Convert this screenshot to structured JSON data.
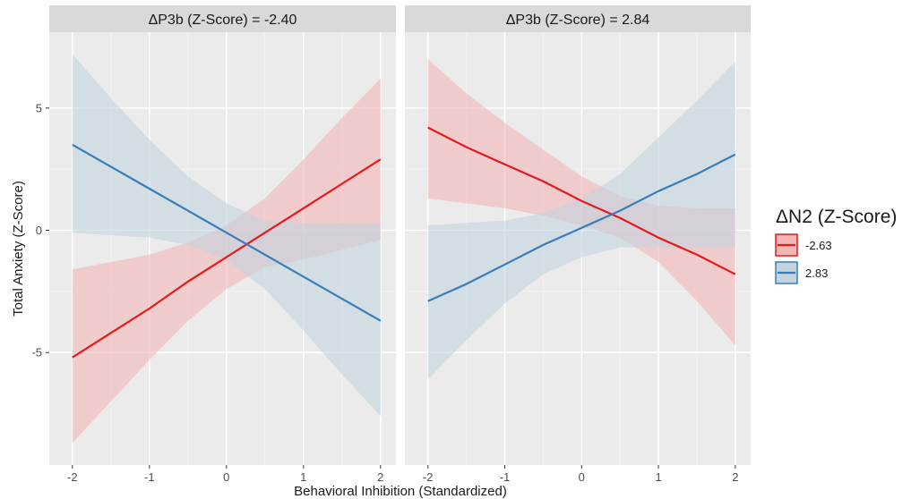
{
  "chart_data": {
    "type": "line",
    "xlabel": "Behavioral Inhibition (Standardized)",
    "ylabel": "Total Anxiety (Z-Score)",
    "xlim": [
      -2.3,
      2.2
    ],
    "ylim": [
      -9.6,
      8.1
    ],
    "x_ticks": [
      -2,
      -1,
      0,
      1,
      2
    ],
    "y_ticks": [
      -5,
      0,
      5
    ],
    "grid": true,
    "legend": {
      "title": "ΔN2 (Z-Score)",
      "placement": "right"
    },
    "series_styles": [
      {
        "name": "-2.63",
        "line_color": "#e41a1c",
        "band_color": "#f4b5b6"
      },
      {
        "name": "2.83",
        "line_color": "#377eb8",
        "band_color": "#c3d3e0"
      }
    ],
    "panels": [
      {
        "title": "ΔP3b (Z-Score) = -2.40",
        "series": [
          {
            "name": "-2.63",
            "x": [
              -2,
              -1.5,
              -1,
              -0.5,
              0,
              0.5,
              1,
              1.5,
              2
            ],
            "y": [
              -5.2,
              -4.2,
              -3.2,
              -2.1,
              -1.1,
              -0.1,
              0.9,
              1.9,
              2.9
            ],
            "lower": [
              -8.7,
              -7.0,
              -5.3,
              -3.7,
              -2.4,
              -1.5,
              -1.2,
              -0.8,
              -0.4
            ],
            "upper": [
              -1.6,
              -1.3,
              -1.0,
              -0.5,
              0.2,
              1.3,
              2.9,
              4.6,
              6.2
            ]
          },
          {
            "name": "2.83",
            "x": [
              -2,
              -1.5,
              -1,
              -0.5,
              0,
              0.5,
              1,
              1.5,
              2
            ],
            "y": [
              3.5,
              2.6,
              1.7,
              0.8,
              -0.1,
              -1.0,
              -1.9,
              -2.8,
              -3.7
            ],
            "lower": [
              -0.1,
              -0.2,
              -0.3,
              -0.6,
              -1.2,
              -2.4,
              -4.1,
              -5.9,
              -7.6
            ],
            "upper": [
              7.2,
              5.4,
              3.7,
              2.2,
              1.1,
              0.4,
              0.3,
              0.3,
              0.3
            ]
          }
        ]
      },
      {
        "title": "ΔP3b (Z-Score) = 2.84",
        "series": [
          {
            "name": "-2.63",
            "x": [
              -2,
              -1.5,
              -1,
              -0.5,
              0,
              0.5,
              1,
              1.5,
              2
            ],
            "y": [
              4.2,
              3.4,
              2.7,
              2.0,
              1.2,
              0.5,
              -0.3,
              -1.0,
              -1.8
            ],
            "lower": [
              1.3,
              1.1,
              0.9,
              0.6,
              0.2,
              -0.3,
              -1.3,
              -2.9,
              -4.7
            ],
            "upper": [
              7.0,
              5.6,
              4.4,
              3.3,
              2.2,
              1.4,
              1.0,
              0.9,
              0.9
            ]
          },
          {
            "name": "2.83",
            "x": [
              -2,
              -1.5,
              -1,
              -0.5,
              0,
              0.5,
              1,
              1.5,
              2
            ],
            "y": [
              -2.9,
              -2.2,
              -1.4,
              -0.6,
              0.1,
              0.8,
              1.6,
              2.3,
              3.1
            ],
            "lower": [
              -6.1,
              -4.5,
              -3.0,
              -1.8,
              -1.1,
              -0.7,
              -0.7,
              -0.7,
              -0.7
            ],
            "upper": [
              0.2,
              0.3,
              0.4,
              0.7,
              1.3,
              2.3,
              3.8,
              5.3,
              6.9
            ]
          }
        ]
      }
    ]
  }
}
